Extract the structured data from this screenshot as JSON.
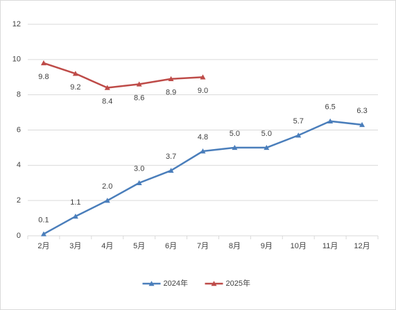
{
  "chart_data": {
    "type": "line",
    "categories": [
      "2月",
      "3月",
      "4月",
      "5月",
      "6月",
      "7月",
      "8月",
      "9月",
      "10月",
      "11月",
      "12月"
    ],
    "series": [
      {
        "name": "2024年",
        "color": "#4a7ebb",
        "values": [
          0.1,
          1.1,
          2.0,
          3.0,
          3.7,
          4.8,
          5.0,
          5.0,
          5.7,
          6.5,
          6.3
        ],
        "value_labels": [
          "0.1",
          "1.1",
          "2.0",
          "3.0",
          "3.7",
          "4.8",
          "5.0",
          "5.0",
          "5.7",
          "6.5",
          "6.3"
        ]
      },
      {
        "name": "2025年",
        "color": "#be4b48",
        "values": [
          9.8,
          9.2,
          8.4,
          8.6,
          8.9,
          9.0,
          null,
          null,
          null,
          null,
          null
        ],
        "value_labels": [
          "9.8",
          "9.2",
          "8.4",
          "8.6",
          "8.9",
          "9.0",
          null,
          null,
          null,
          null,
          null
        ]
      }
    ],
    "ylim": [
      0,
      12
    ],
    "yticks": [
      0,
      2,
      4,
      6,
      8,
      10,
      12
    ],
    "grid": true,
    "legend": "bottom"
  }
}
